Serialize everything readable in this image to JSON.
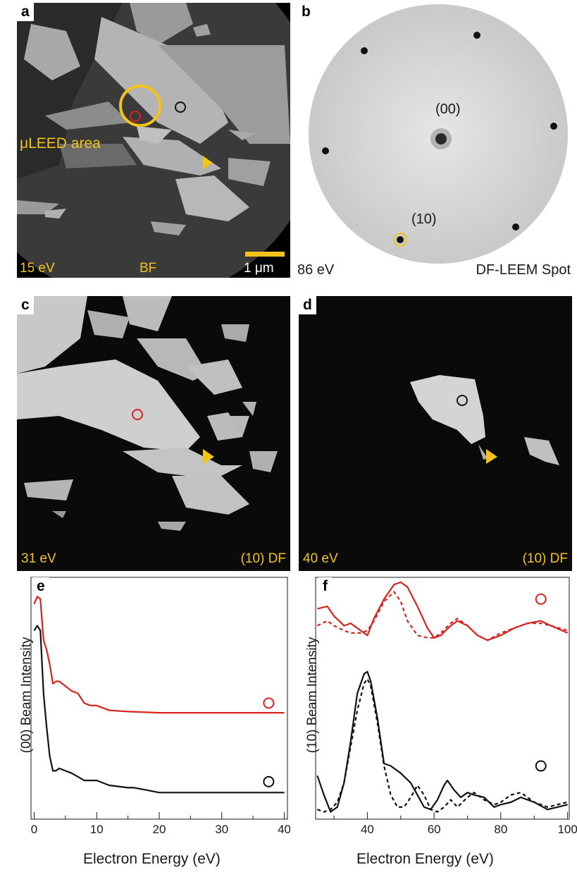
{
  "panels": {
    "a": {
      "letter": "a",
      "energy": "15 eV",
      "mode": "BF",
      "scale": "1 μm",
      "area_label": "μLEED area"
    },
    "b": {
      "letter": "b",
      "energy": "86 eV",
      "mode": "DF-LEEM Spot",
      "spot_00": "(00)",
      "spot_10": "(10)"
    },
    "c": {
      "letter": "c",
      "energy": "31 eV",
      "mode": "(10) DF"
    },
    "d": {
      "letter": "d",
      "energy": "40 eV",
      "mode": "(10) DF"
    },
    "e": {
      "letter": "e",
      "ylabel": "(00) Beam Intensity",
      "xlabel": "Electron Energy (eV)"
    },
    "f": {
      "letter": "f",
      "ylabel": "(10) Beam Intensity",
      "xlabel": "Electron Energy (eV)"
    }
  },
  "colors": {
    "red": "#d8231f",
    "black": "#111111",
    "yellow": "#f2c318"
  },
  "chart_data": [
    {
      "type": "line",
      "panel": "e",
      "xlabel": "Electron Energy (eV)",
      "ylabel": "(00) Beam Intensity",
      "xlim": [
        -0.5,
        40.5
      ],
      "ylim": [
        0,
        1
      ],
      "xticks": [
        0,
        10,
        20,
        30,
        40
      ],
      "series": [
        {
          "color": "#d8231f",
          "dash": false,
          "x": [
            0,
            0.5,
            1,
            1.5,
            2,
            2.5,
            3,
            3.5,
            4,
            5,
            6,
            7,
            8,
            9,
            10,
            12,
            15,
            20,
            25,
            30,
            35,
            40
          ],
          "y": [
            0.89,
            0.92,
            0.91,
            0.74,
            0.7,
            0.64,
            0.56,
            0.57,
            0.57,
            0.55,
            0.53,
            0.52,
            0.48,
            0.47,
            0.47,
            0.45,
            0.445,
            0.44,
            0.44,
            0.44,
            0.44,
            0.44
          ]
        },
        {
          "color": "#111111",
          "dash": false,
          "x": [
            0,
            0.5,
            1,
            1.5,
            2,
            2.5,
            3,
            3.5,
            4,
            5,
            6,
            8,
            10,
            12,
            15,
            16,
            18,
            20,
            25,
            30,
            35,
            40
          ],
          "y": [
            0.78,
            0.8,
            0.78,
            0.52,
            0.38,
            0.26,
            0.2,
            0.2,
            0.21,
            0.2,
            0.19,
            0.16,
            0.16,
            0.14,
            0.13,
            0.13,
            0.12,
            0.11,
            0.11,
            0.11,
            0.11,
            0.11
          ]
        }
      ],
      "markers": [
        {
          "x": 37.5,
          "y": 0.48,
          "color": "#d8231f"
        },
        {
          "x": 37.5,
          "y": 0.155,
          "color": "#111111"
        }
      ]
    },
    {
      "type": "line",
      "panel": "f",
      "xlabel": "Electron Energy (eV)",
      "ylabel": "(10) Beam Intensity",
      "xlim": [
        24.5,
        100.5
      ],
      "ylim": [
        0,
        1
      ],
      "xticks": [
        40,
        60,
        80,
        100
      ],
      "series": [
        {
          "color": "#d8231f",
          "dash": false,
          "x": [
            25,
            28,
            30,
            33,
            35,
            38,
            40,
            42,
            45,
            48,
            50,
            52,
            55,
            58,
            60,
            62,
            65,
            67,
            70,
            73,
            76,
            80,
            84,
            88,
            92,
            95,
            100
          ],
          "y": [
            0.87,
            0.88,
            0.84,
            0.8,
            0.81,
            0.78,
            0.76,
            0.83,
            0.91,
            0.97,
            0.98,
            0.96,
            0.88,
            0.79,
            0.75,
            0.76,
            0.8,
            0.82,
            0.8,
            0.76,
            0.74,
            0.76,
            0.79,
            0.81,
            0.82,
            0.8,
            0.77
          ]
        },
        {
          "color": "#d8231f",
          "dash": true,
          "x": [
            25,
            28,
            30,
            33,
            35,
            38,
            40,
            42,
            45,
            48,
            50,
            52,
            55,
            58,
            60,
            62,
            65,
            67,
            70,
            73,
            76,
            80,
            84,
            88,
            92,
            95,
            100
          ],
          "y": [
            0.8,
            0.82,
            0.8,
            0.78,
            0.77,
            0.77,
            0.78,
            0.82,
            0.9,
            0.94,
            0.9,
            0.82,
            0.76,
            0.75,
            0.75,
            0.77,
            0.81,
            0.83,
            0.8,
            0.76,
            0.74,
            0.77,
            0.79,
            0.81,
            0.81,
            0.8,
            0.78
          ]
        },
        {
          "color": "#111111",
          "dash": false,
          "x": [
            25,
            27,
            29,
            31,
            33,
            35,
            37,
            39,
            40,
            41,
            43,
            45,
            47,
            50,
            53,
            55,
            57,
            59,
            61,
            63,
            64,
            66,
            68,
            70,
            72,
            75,
            78,
            80,
            83,
            86,
            90,
            94,
            97,
            100
          ],
          "y": [
            0.18,
            0.1,
            0.03,
            0.05,
            0.15,
            0.32,
            0.52,
            0.6,
            0.61,
            0.57,
            0.42,
            0.23,
            0.22,
            0.19,
            0.15,
            0.1,
            0.05,
            0.04,
            0.08,
            0.14,
            0.16,
            0.12,
            0.09,
            0.11,
            0.1,
            0.09,
            0.05,
            0.06,
            0.07,
            0.09,
            0.07,
            0.04,
            0.05,
            0.06
          ]
        },
        {
          "color": "#111111",
          "dash": true,
          "x": [
            25,
            27,
            29,
            31,
            33,
            35,
            37,
            39,
            40,
            41,
            43,
            45,
            47,
            49,
            51,
            53,
            55,
            57,
            59,
            61,
            63,
            65,
            67,
            70,
            72,
            75,
            78,
            80,
            83,
            86,
            90,
            94,
            97,
            100
          ],
          "y": [
            0.04,
            0.03,
            0.04,
            0.07,
            0.15,
            0.3,
            0.45,
            0.56,
            0.58,
            0.55,
            0.4,
            0.22,
            0.1,
            0.05,
            0.05,
            0.09,
            0.14,
            0.1,
            0.04,
            0.03,
            0.05,
            0.08,
            0.05,
            0.09,
            0.11,
            0.08,
            0.06,
            0.07,
            0.1,
            0.11,
            0.07,
            0.05,
            0.06,
            0.07
          ]
        }
      ],
      "markers": [
        {
          "x": 92,
          "y": 0.91,
          "color": "#d8231f"
        },
        {
          "x": 92,
          "y": 0.22,
          "color": "#111111"
        }
      ]
    }
  ]
}
